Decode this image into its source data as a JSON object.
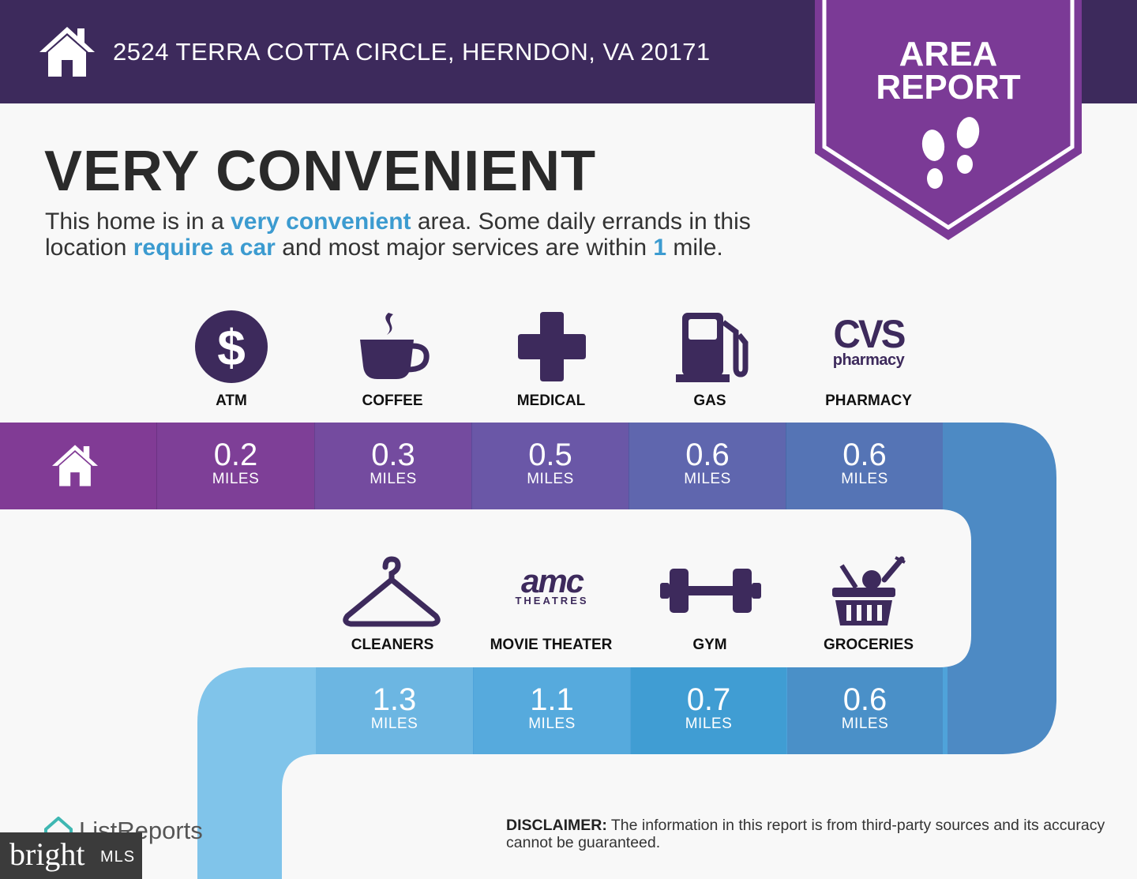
{
  "header": {
    "address": "2524 TERRA COTTA CIRCLE, HERNDON, VA 20171",
    "icon": "house-icon",
    "background": "#3d2a5c"
  },
  "banner": {
    "line1": "AREA",
    "line2": "REPORT",
    "icon": "footprints-icon",
    "color": "#7b3a96"
  },
  "title": "VERY CONVENIENT",
  "description": {
    "part1": "This home is in a ",
    "hl1": "very convenient",
    "part2": " area. Some daily errands in this location ",
    "hl2": "require a car",
    "part3": " and most major services are within ",
    "hl3": "1",
    "part4": " mile."
  },
  "row1": [
    {
      "label": "ATM",
      "icon": "dollar-icon",
      "distance": "0.2",
      "unit": "MILES",
      "color": "#7e3f97"
    },
    {
      "label": "COFFEE",
      "icon": "coffee-icon",
      "distance": "0.3",
      "unit": "MILES",
      "color": "#744b9f"
    },
    {
      "label": "MEDICAL",
      "icon": "medical-cross-icon",
      "distance": "0.5",
      "unit": "MILES",
      "color": "#6a57a7"
    },
    {
      "label": "GAS",
      "icon": "gas-pump-icon",
      "distance": "0.6",
      "unit": "MILES",
      "color": "#5f66ae"
    },
    {
      "label": "PHARMACY",
      "icon": "cvs-pharmacy-logo",
      "distance": "0.6",
      "unit": "MILES",
      "color": "#5574b5"
    }
  ],
  "row2": [
    {
      "label": "CLEANERS",
      "icon": "hanger-icon",
      "distance": "1.3",
      "unit": "MILES",
      "color": "#6cb6e2"
    },
    {
      "label": "MOVIE THEATER",
      "icon": "amc-theatres-logo",
      "distance": "1.1",
      "unit": "MILES",
      "color": "#56aadd"
    },
    {
      "label": "GYM",
      "icon": "dumbbell-icon",
      "distance": "0.7",
      "unit": "MILES",
      "color": "#409dd3"
    },
    {
      "label": "GROCERIES",
      "icon": "grocery-basket-icon",
      "distance": "0.6",
      "unit": "MILES",
      "color": "#4a90c8"
    }
  ],
  "logos": {
    "cvs_main": "CVS",
    "cvs_sub": "pharmacy",
    "amc_main": "amc",
    "amc_sub": "THEATRES"
  },
  "disclaimer": {
    "label": "DISCLAIMER:",
    "text": " The information in this report is from third-party sources and its accuracy cannot be guaranteed."
  },
  "footer": {
    "listreports": "ListReports",
    "bright": "bright",
    "mls": "MLS"
  }
}
